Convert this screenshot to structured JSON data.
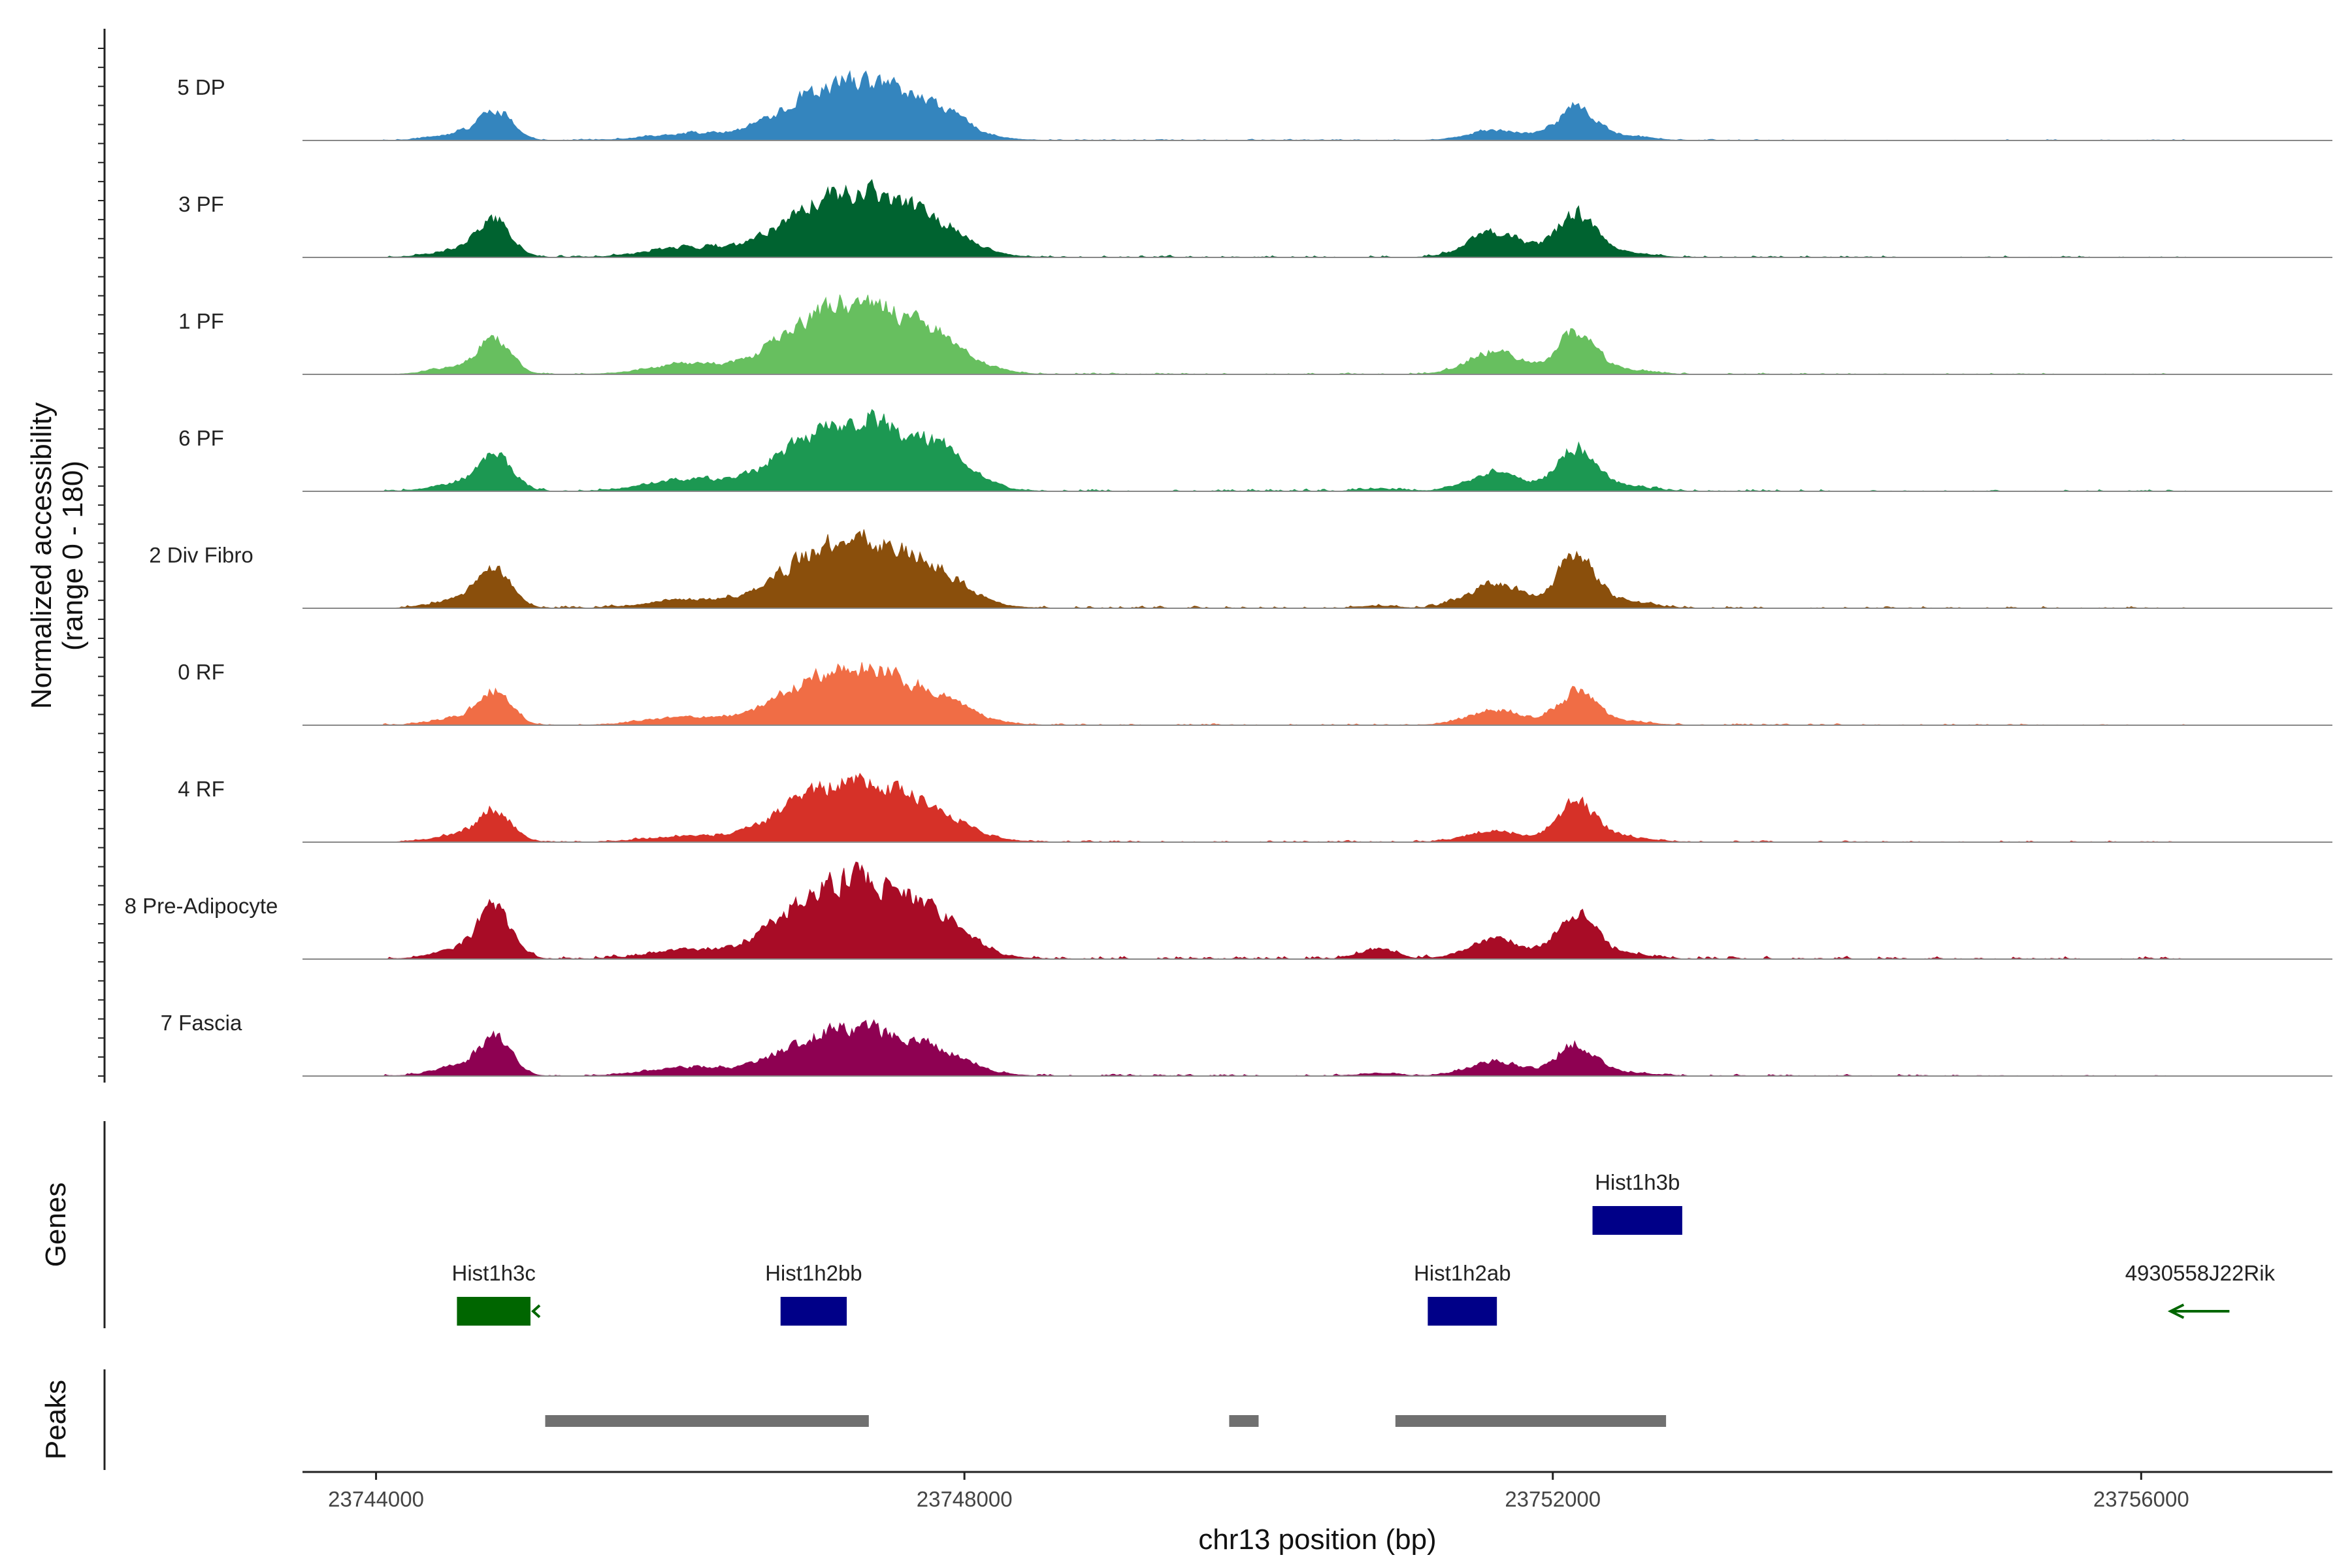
{
  "chart_data": {
    "type": "area",
    "title": "",
    "xlabel": "chr13 position (bp)",
    "ylabel": "Normalized accessibility",
    "ylabel_range": "(range 0 - 180)",
    "y_range": [
      0,
      180
    ],
    "x_range": [
      23743500,
      23757300
    ],
    "x_ticks": [
      23744000,
      23748000,
      23752000,
      23756000
    ],
    "x_tick_labels": [
      "23744000",
      "23748000",
      "23752000",
      "23756000"
    ],
    "peak_centers": {
      "p1": 23744800,
      "p2": 23747300,
      "p3": 23751600,
      "p4": 23752150,
      "p5": 23746100,
      "p6": 23747900,
      "p7": 23750800
    },
    "series": [
      {
        "name": "5 DP",
        "color": "#3485BE",
        "peaks": {
          "p1": 55,
          "p2": 100,
          "p3": 20,
          "p4": 55,
          "p5": 12,
          "p6": 4,
          "p7": 0
        },
        "noise": 3
      },
      {
        "name": "3 PF",
        "color": "#006330",
        "peaks": {
          "p1": 65,
          "p2": 110,
          "p3": 45,
          "p4": 65,
          "p5": 18,
          "p6": 7,
          "p7": 0
        },
        "noise": 5
      },
      {
        "name": "1 PF",
        "color": "#67BF5F",
        "peaks": {
          "p1": 60,
          "p2": 120,
          "p3": 40,
          "p4": 60,
          "p5": 18,
          "p6": 8,
          "p7": 0
        },
        "noise": 4
      },
      {
        "name": "6 PF",
        "color": "#1C9852",
        "peaks": {
          "p1": 62,
          "p2": 120,
          "p3": 35,
          "p4": 65,
          "p5": 22,
          "p6": 18,
          "p7": 4
        },
        "noise": 6
      },
      {
        "name": "2 Div Fibro",
        "color": "#8A4F0C",
        "peaks": {
          "p1": 70,
          "p2": 115,
          "p3": 45,
          "p4": 80,
          "p5": 15,
          "p6": 8,
          "p7": 4
        },
        "noise": 6
      },
      {
        "name": "0 RF",
        "color": "#F06D45",
        "peaks": {
          "p1": 60,
          "p2": 95,
          "p3": 28,
          "p4": 50,
          "p5": 14,
          "p6": 5,
          "p7": 0
        },
        "noise": 4
      },
      {
        "name": "4 RF",
        "color": "#D63128",
        "peaks": {
          "p1": 55,
          "p2": 100,
          "p3": 20,
          "p4": 65,
          "p5": 10,
          "p6": 6,
          "p7": 0
        },
        "noise": 4
      },
      {
        "name": "8 Pre-Adipocyte",
        "color": "#A80C26",
        "peaks": {
          "p1": 85,
          "p2": 135,
          "p3": 35,
          "p4": 70,
          "p5": 15,
          "p6": 12,
          "p7": 18
        },
        "noise": 8
      },
      {
        "name": "7 Fascia",
        "color": "#8E0152",
        "peaks": {
          "p1": 70,
          "p2": 80,
          "p3": 25,
          "p4": 50,
          "p5": 15,
          "p6": 8,
          "p7": 5
        },
        "noise": 5
      }
    ],
    "genes_label": "Genes",
    "genes": [
      {
        "name": "Hist1h3c",
        "start": 23744550,
        "end": 23745050,
        "row": 2,
        "color": "#006600",
        "strand": "-",
        "arrow_only": false
      },
      {
        "name": "Hist1h2bb",
        "start": 23746750,
        "end": 23747200,
        "row": 2,
        "color": "#000088",
        "strand": "+",
        "arrow_only": false
      },
      {
        "name": "Hist1h2ab",
        "start": 23751150,
        "end": 23751620,
        "row": 2,
        "color": "#000088",
        "strand": "+",
        "arrow_only": false
      },
      {
        "name": "Hist1h3b",
        "start": 23752270,
        "end": 23752880,
        "row": 1,
        "color": "#000088",
        "strand": "+",
        "arrow_only": false
      },
      {
        "name": "4930558J22Rik",
        "start": 23756200,
        "end": 23756600,
        "row": 2,
        "color": "#006600",
        "strand": "-",
        "arrow_only": true
      }
    ],
    "peaks_label": "Peaks",
    "peak_regions": [
      {
        "start": 23745150,
        "end": 23747350
      },
      {
        "start": 23749800,
        "end": 23750000
      },
      {
        "start": 23750930,
        "end": 23752770
      }
    ],
    "peak_color": "#707070"
  }
}
